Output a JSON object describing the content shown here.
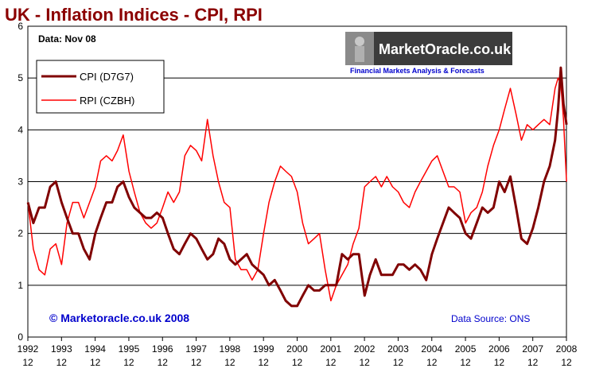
{
  "chart_data": {
    "type": "line",
    "title": "UK - Inflation Indices - CPI, RPI",
    "data_date": "Data: Nov 08",
    "logo": {
      "title": "MarketOracle.co.uk",
      "subtitle": "Financial Markets Analysis & Forecasts"
    },
    "copyright": "© Marketoracle.co.uk  2008",
    "source": "Data Source: ONS",
    "ylim": [
      0,
      6
    ],
    "yticks": [
      "0",
      "1",
      "2",
      "3",
      "4",
      "5",
      "6"
    ],
    "xlim": [
      1992.917,
      2008.917
    ],
    "xticks": [
      {
        "top": "1992",
        "bottom": "12"
      },
      {
        "top": "1993",
        "bottom": "12"
      },
      {
        "top": "1994",
        "bottom": "12"
      },
      {
        "top": "1995",
        "bottom": "12"
      },
      {
        "top": "1996",
        "bottom": "12"
      },
      {
        "top": "1997",
        "bottom": "12"
      },
      {
        "top": "1998",
        "bottom": "12"
      },
      {
        "top": "1999",
        "bottom": "12"
      },
      {
        "top": "2000",
        "bottom": "12"
      },
      {
        "top": "2001",
        "bottom": "12"
      },
      {
        "top": "2002",
        "bottom": "12"
      },
      {
        "top": "2003",
        "bottom": "12"
      },
      {
        "top": "2004",
        "bottom": "12"
      },
      {
        "top": "2005",
        "bottom": "12"
      },
      {
        "top": "2006",
        "bottom": "12"
      },
      {
        "top": "2007",
        "bottom": "12"
      },
      {
        "top": "2008",
        "bottom": "12"
      }
    ],
    "grid": true,
    "legend_position": "top-left",
    "series": [
      {
        "name": "CPI (D7G7)",
        "color": "#800000",
        "points": [
          [
            1992.92,
            2.6
          ],
          [
            1993.08,
            2.2
          ],
          [
            1993.25,
            2.5
          ],
          [
            1993.42,
            2.5
          ],
          [
            1993.58,
            2.9
          ],
          [
            1993.75,
            3.0
          ],
          [
            1993.92,
            2.6
          ],
          [
            1994.08,
            2.3
          ],
          [
            1994.25,
            2.0
          ],
          [
            1994.42,
            2.0
          ],
          [
            1994.58,
            1.7
          ],
          [
            1994.75,
            1.5
          ],
          [
            1994.92,
            2.0
          ],
          [
            1995.08,
            2.3
          ],
          [
            1995.25,
            2.6
          ],
          [
            1995.42,
            2.6
          ],
          [
            1995.58,
            2.9
          ],
          [
            1995.75,
            3.0
          ],
          [
            1995.92,
            2.7
          ],
          [
            1996.08,
            2.5
          ],
          [
            1996.25,
            2.4
          ],
          [
            1996.42,
            2.3
          ],
          [
            1996.58,
            2.3
          ],
          [
            1996.75,
            2.4
          ],
          [
            1996.92,
            2.3
          ],
          [
            1997.08,
            2.0
          ],
          [
            1997.25,
            1.7
          ],
          [
            1997.42,
            1.6
          ],
          [
            1997.58,
            1.8
          ],
          [
            1997.75,
            2.0
          ],
          [
            1997.92,
            1.9
          ],
          [
            1998.08,
            1.7
          ],
          [
            1998.25,
            1.5
          ],
          [
            1998.42,
            1.6
          ],
          [
            1998.58,
            1.9
          ],
          [
            1998.75,
            1.8
          ],
          [
            1998.92,
            1.5
          ],
          [
            1999.08,
            1.4
          ],
          [
            1999.25,
            1.5
          ],
          [
            1999.42,
            1.6
          ],
          [
            1999.58,
            1.4
          ],
          [
            1999.75,
            1.3
          ],
          [
            1999.92,
            1.2
          ],
          [
            2000.08,
            1.0
          ],
          [
            2000.25,
            1.1
          ],
          [
            2000.42,
            0.9
          ],
          [
            2000.58,
            0.7
          ],
          [
            2000.75,
            0.6
          ],
          [
            2000.92,
            0.6
          ],
          [
            2001.08,
            0.8
          ],
          [
            2001.25,
            1.0
          ],
          [
            2001.42,
            0.9
          ],
          [
            2001.58,
            0.9
          ],
          [
            2001.75,
            1.0
          ],
          [
            2001.92,
            1.0
          ],
          [
            2002.08,
            1.0
          ],
          [
            2002.25,
            1.6
          ],
          [
            2002.42,
            1.5
          ],
          [
            2002.58,
            1.6
          ],
          [
            2002.75,
            1.6
          ],
          [
            2002.92,
            0.8
          ],
          [
            2003.08,
            1.2
          ],
          [
            2003.25,
            1.5
          ],
          [
            2003.42,
            1.2
          ],
          [
            2003.58,
            1.2
          ],
          [
            2003.75,
            1.2
          ],
          [
            2003.92,
            1.4
          ],
          [
            2004.08,
            1.4
          ],
          [
            2004.25,
            1.3
          ],
          [
            2004.42,
            1.4
          ],
          [
            2004.58,
            1.3
          ],
          [
            2004.75,
            1.1
          ],
          [
            2004.92,
            1.6
          ],
          [
            2005.08,
            1.9
          ],
          [
            2005.25,
            2.2
          ],
          [
            2005.42,
            2.5
          ],
          [
            2005.58,
            2.4
          ],
          [
            2005.75,
            2.3
          ],
          [
            2005.92,
            2.0
          ],
          [
            2006.08,
            1.9
          ],
          [
            2006.25,
            2.2
          ],
          [
            2006.42,
            2.5
          ],
          [
            2006.58,
            2.4
          ],
          [
            2006.75,
            2.5
          ],
          [
            2006.92,
            3.0
          ],
          [
            2007.08,
            2.8
          ],
          [
            2007.25,
            3.1
          ],
          [
            2007.42,
            2.5
          ],
          [
            2007.58,
            1.9
          ],
          [
            2007.75,
            1.8
          ],
          [
            2007.92,
            2.1
          ],
          [
            2008.08,
            2.5
          ],
          [
            2008.25,
            3.0
          ],
          [
            2008.42,
            3.3
          ],
          [
            2008.58,
            3.8
          ],
          [
            2008.67,
            4.4
          ],
          [
            2008.75,
            5.2
          ],
          [
            2008.83,
            4.5
          ],
          [
            2008.92,
            4.1
          ]
        ]
      },
      {
        "name": "RPI (CZBH)",
        "color": "#ff0000",
        "points": [
          [
            1992.92,
            2.6
          ],
          [
            1993.08,
            1.7
          ],
          [
            1993.25,
            1.3
          ],
          [
            1993.42,
            1.2
          ],
          [
            1993.58,
            1.7
          ],
          [
            1993.75,
            1.8
          ],
          [
            1993.92,
            1.4
          ],
          [
            1994.08,
            2.2
          ],
          [
            1994.25,
            2.6
          ],
          [
            1994.42,
            2.6
          ],
          [
            1994.58,
            2.3
          ],
          [
            1994.75,
            2.6
          ],
          [
            1994.92,
            2.9
          ],
          [
            1995.08,
            3.4
          ],
          [
            1995.25,
            3.5
          ],
          [
            1995.42,
            3.4
          ],
          [
            1995.58,
            3.6
          ],
          [
            1995.75,
            3.9
          ],
          [
            1995.92,
            3.2
          ],
          [
            1996.08,
            2.8
          ],
          [
            1996.25,
            2.4
          ],
          [
            1996.42,
            2.2
          ],
          [
            1996.58,
            2.1
          ],
          [
            1996.75,
            2.2
          ],
          [
            1996.92,
            2.5
          ],
          [
            1997.08,
            2.8
          ],
          [
            1997.25,
            2.6
          ],
          [
            1997.42,
            2.8
          ],
          [
            1997.58,
            3.5
          ],
          [
            1997.75,
            3.7
          ],
          [
            1997.92,
            3.6
          ],
          [
            1998.08,
            3.4
          ],
          [
            1998.25,
            4.2
          ],
          [
            1998.42,
            3.5
          ],
          [
            1998.58,
            3.0
          ],
          [
            1998.75,
            2.6
          ],
          [
            1998.92,
            2.5
          ],
          [
            1999.08,
            1.5
          ],
          [
            1999.25,
            1.3
          ],
          [
            1999.42,
            1.3
          ],
          [
            1999.58,
            1.1
          ],
          [
            1999.75,
            1.3
          ],
          [
            1999.92,
            2.0
          ],
          [
            2000.08,
            2.6
          ],
          [
            2000.25,
            3.0
          ],
          [
            2000.42,
            3.3
          ],
          [
            2000.58,
            3.2
          ],
          [
            2000.75,
            3.1
          ],
          [
            2000.92,
            2.8
          ],
          [
            2001.08,
            2.2
          ],
          [
            2001.25,
            1.8
          ],
          [
            2001.42,
            1.9
          ],
          [
            2001.58,
            2.0
          ],
          [
            2001.75,
            1.3
          ],
          [
            2001.92,
            0.7
          ],
          [
            2002.08,
            1.0
          ],
          [
            2002.25,
            1.2
          ],
          [
            2002.42,
            1.4
          ],
          [
            2002.58,
            1.8
          ],
          [
            2002.75,
            2.1
          ],
          [
            2002.92,
            2.9
          ],
          [
            2003.08,
            3.0
          ],
          [
            2003.25,
            3.1
          ],
          [
            2003.42,
            2.9
          ],
          [
            2003.58,
            3.1
          ],
          [
            2003.75,
            2.9
          ],
          [
            2003.92,
            2.8
          ],
          [
            2004.08,
            2.6
          ],
          [
            2004.25,
            2.5
          ],
          [
            2004.42,
            2.8
          ],
          [
            2004.58,
            3.0
          ],
          [
            2004.75,
            3.2
          ],
          [
            2004.92,
            3.4
          ],
          [
            2005.08,
            3.5
          ],
          [
            2005.25,
            3.2
          ],
          [
            2005.42,
            2.9
          ],
          [
            2005.58,
            2.9
          ],
          [
            2005.75,
            2.8
          ],
          [
            2005.92,
            2.2
          ],
          [
            2006.08,
            2.4
          ],
          [
            2006.25,
            2.5
          ],
          [
            2006.42,
            2.8
          ],
          [
            2006.58,
            3.3
          ],
          [
            2006.75,
            3.7
          ],
          [
            2006.92,
            4.0
          ],
          [
            2007.08,
            4.4
          ],
          [
            2007.25,
            4.8
          ],
          [
            2007.42,
            4.3
          ],
          [
            2007.58,
            3.8
          ],
          [
            2007.75,
            4.1
          ],
          [
            2007.92,
            4.0
          ],
          [
            2008.08,
            4.1
          ],
          [
            2008.25,
            4.2
          ],
          [
            2008.42,
            4.1
          ],
          [
            2008.58,
            4.8
          ],
          [
            2008.67,
            5.0
          ],
          [
            2008.75,
            4.9
          ],
          [
            2008.83,
            4.2
          ],
          [
            2008.92,
            3.0
          ]
        ]
      }
    ]
  }
}
